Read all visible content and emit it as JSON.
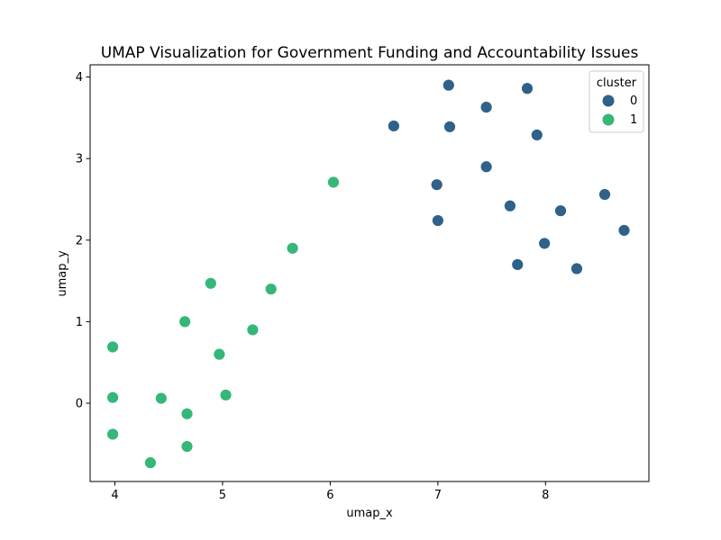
{
  "chart_data": {
    "type": "scatter",
    "title": "UMAP Visualization for Government Funding and Accountability Issues",
    "xlabel": "umap_x",
    "ylabel": "umap_y",
    "xlim": [
      3.77,
      8.96
    ],
    "ylim": [
      -0.96,
      4.15
    ],
    "xticks": [
      "4",
      "5",
      "6",
      "7",
      "8"
    ],
    "yticks": [
      "0",
      "1",
      "2",
      "3",
      "4"
    ],
    "grid": false,
    "legend": {
      "title": "cluster",
      "placement": "top-right"
    },
    "series": [
      {
        "name": "0",
        "color": "#2f6189",
        "points": [
          [
            7.1,
            3.9
          ],
          [
            7.83,
            3.86
          ],
          [
            7.45,
            3.63
          ],
          [
            6.59,
            3.4
          ],
          [
            7.11,
            3.39
          ],
          [
            7.92,
            3.29
          ],
          [
            7.45,
            2.9
          ],
          [
            6.99,
            2.68
          ],
          [
            8.55,
            2.56
          ],
          [
            7.67,
            2.42
          ],
          [
            8.14,
            2.36
          ],
          [
            7.0,
            2.24
          ],
          [
            8.73,
            2.12
          ],
          [
            7.99,
            1.96
          ],
          [
            7.74,
            1.7
          ],
          [
            8.29,
            1.65
          ]
        ]
      },
      {
        "name": "1",
        "color": "#35b779",
        "points": [
          [
            6.03,
            2.71
          ],
          [
            5.65,
            1.9
          ],
          [
            4.89,
            1.47
          ],
          [
            5.45,
            1.4
          ],
          [
            4.65,
            1.0
          ],
          [
            5.28,
            0.9
          ],
          [
            3.98,
            0.69
          ],
          [
            4.97,
            0.6
          ],
          [
            5.03,
            0.1
          ],
          [
            3.98,
            0.07
          ],
          [
            4.43,
            0.06
          ],
          [
            4.67,
            -0.13
          ],
          [
            3.98,
            -0.38
          ],
          [
            4.67,
            -0.53
          ],
          [
            4.33,
            -0.73
          ]
        ]
      }
    ]
  }
}
